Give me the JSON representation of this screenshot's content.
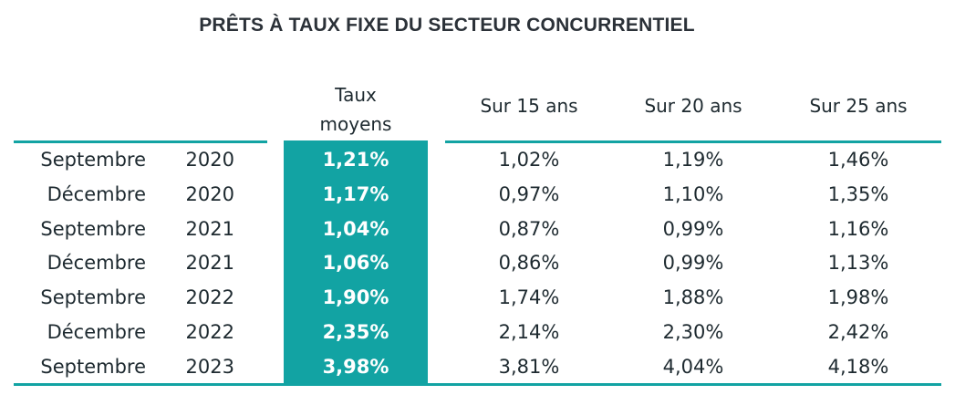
{
  "chart_data": {
    "type": "table",
    "title": "PRÊTS À TAUX FIXE DU SECTEUR CONCURRENTIEL",
    "columns": {
      "average": "Taux moyens",
      "average_lines": [
        "Taux",
        "moyens"
      ],
      "y15": "Sur 15 ans",
      "y20": "Sur 20 ans",
      "y25": "Sur 25 ans"
    },
    "accent_color": "#12a3a3",
    "rows": [
      {
        "month": "Septembre",
        "year": "2020",
        "average": "1,21%",
        "y15": "1,02%",
        "y20": "1,19%",
        "y25": "1,46%"
      },
      {
        "month": "Décembre",
        "year": "2020",
        "average": "1,17%",
        "y15": "0,97%",
        "y20": "1,10%",
        "y25": "1,35%"
      },
      {
        "month": "Septembre",
        "year": "2021",
        "average": "1,04%",
        "y15": "0,87%",
        "y20": "0,99%",
        "y25": "1,16%"
      },
      {
        "month": "Décembre",
        "year": "2021",
        "average": "1,06%",
        "y15": "0,86%",
        "y20": "0,99%",
        "y25": "1,13%"
      },
      {
        "month": "Septembre",
        "year": "2022",
        "average": "1,90%",
        "y15": "1,74%",
        "y20": "1,88%",
        "y25": "1,98%"
      },
      {
        "month": "Décembre",
        "year": "2022",
        "average": "2,35%",
        "y15": "2,14%",
        "y20": "2,30%",
        "y25": "2,42%"
      },
      {
        "month": "Septembre",
        "year": "2023",
        "average": "3,98%",
        "y15": "3,81%",
        "y20": "4,04%",
        "y25": "4,18%"
      }
    ]
  }
}
